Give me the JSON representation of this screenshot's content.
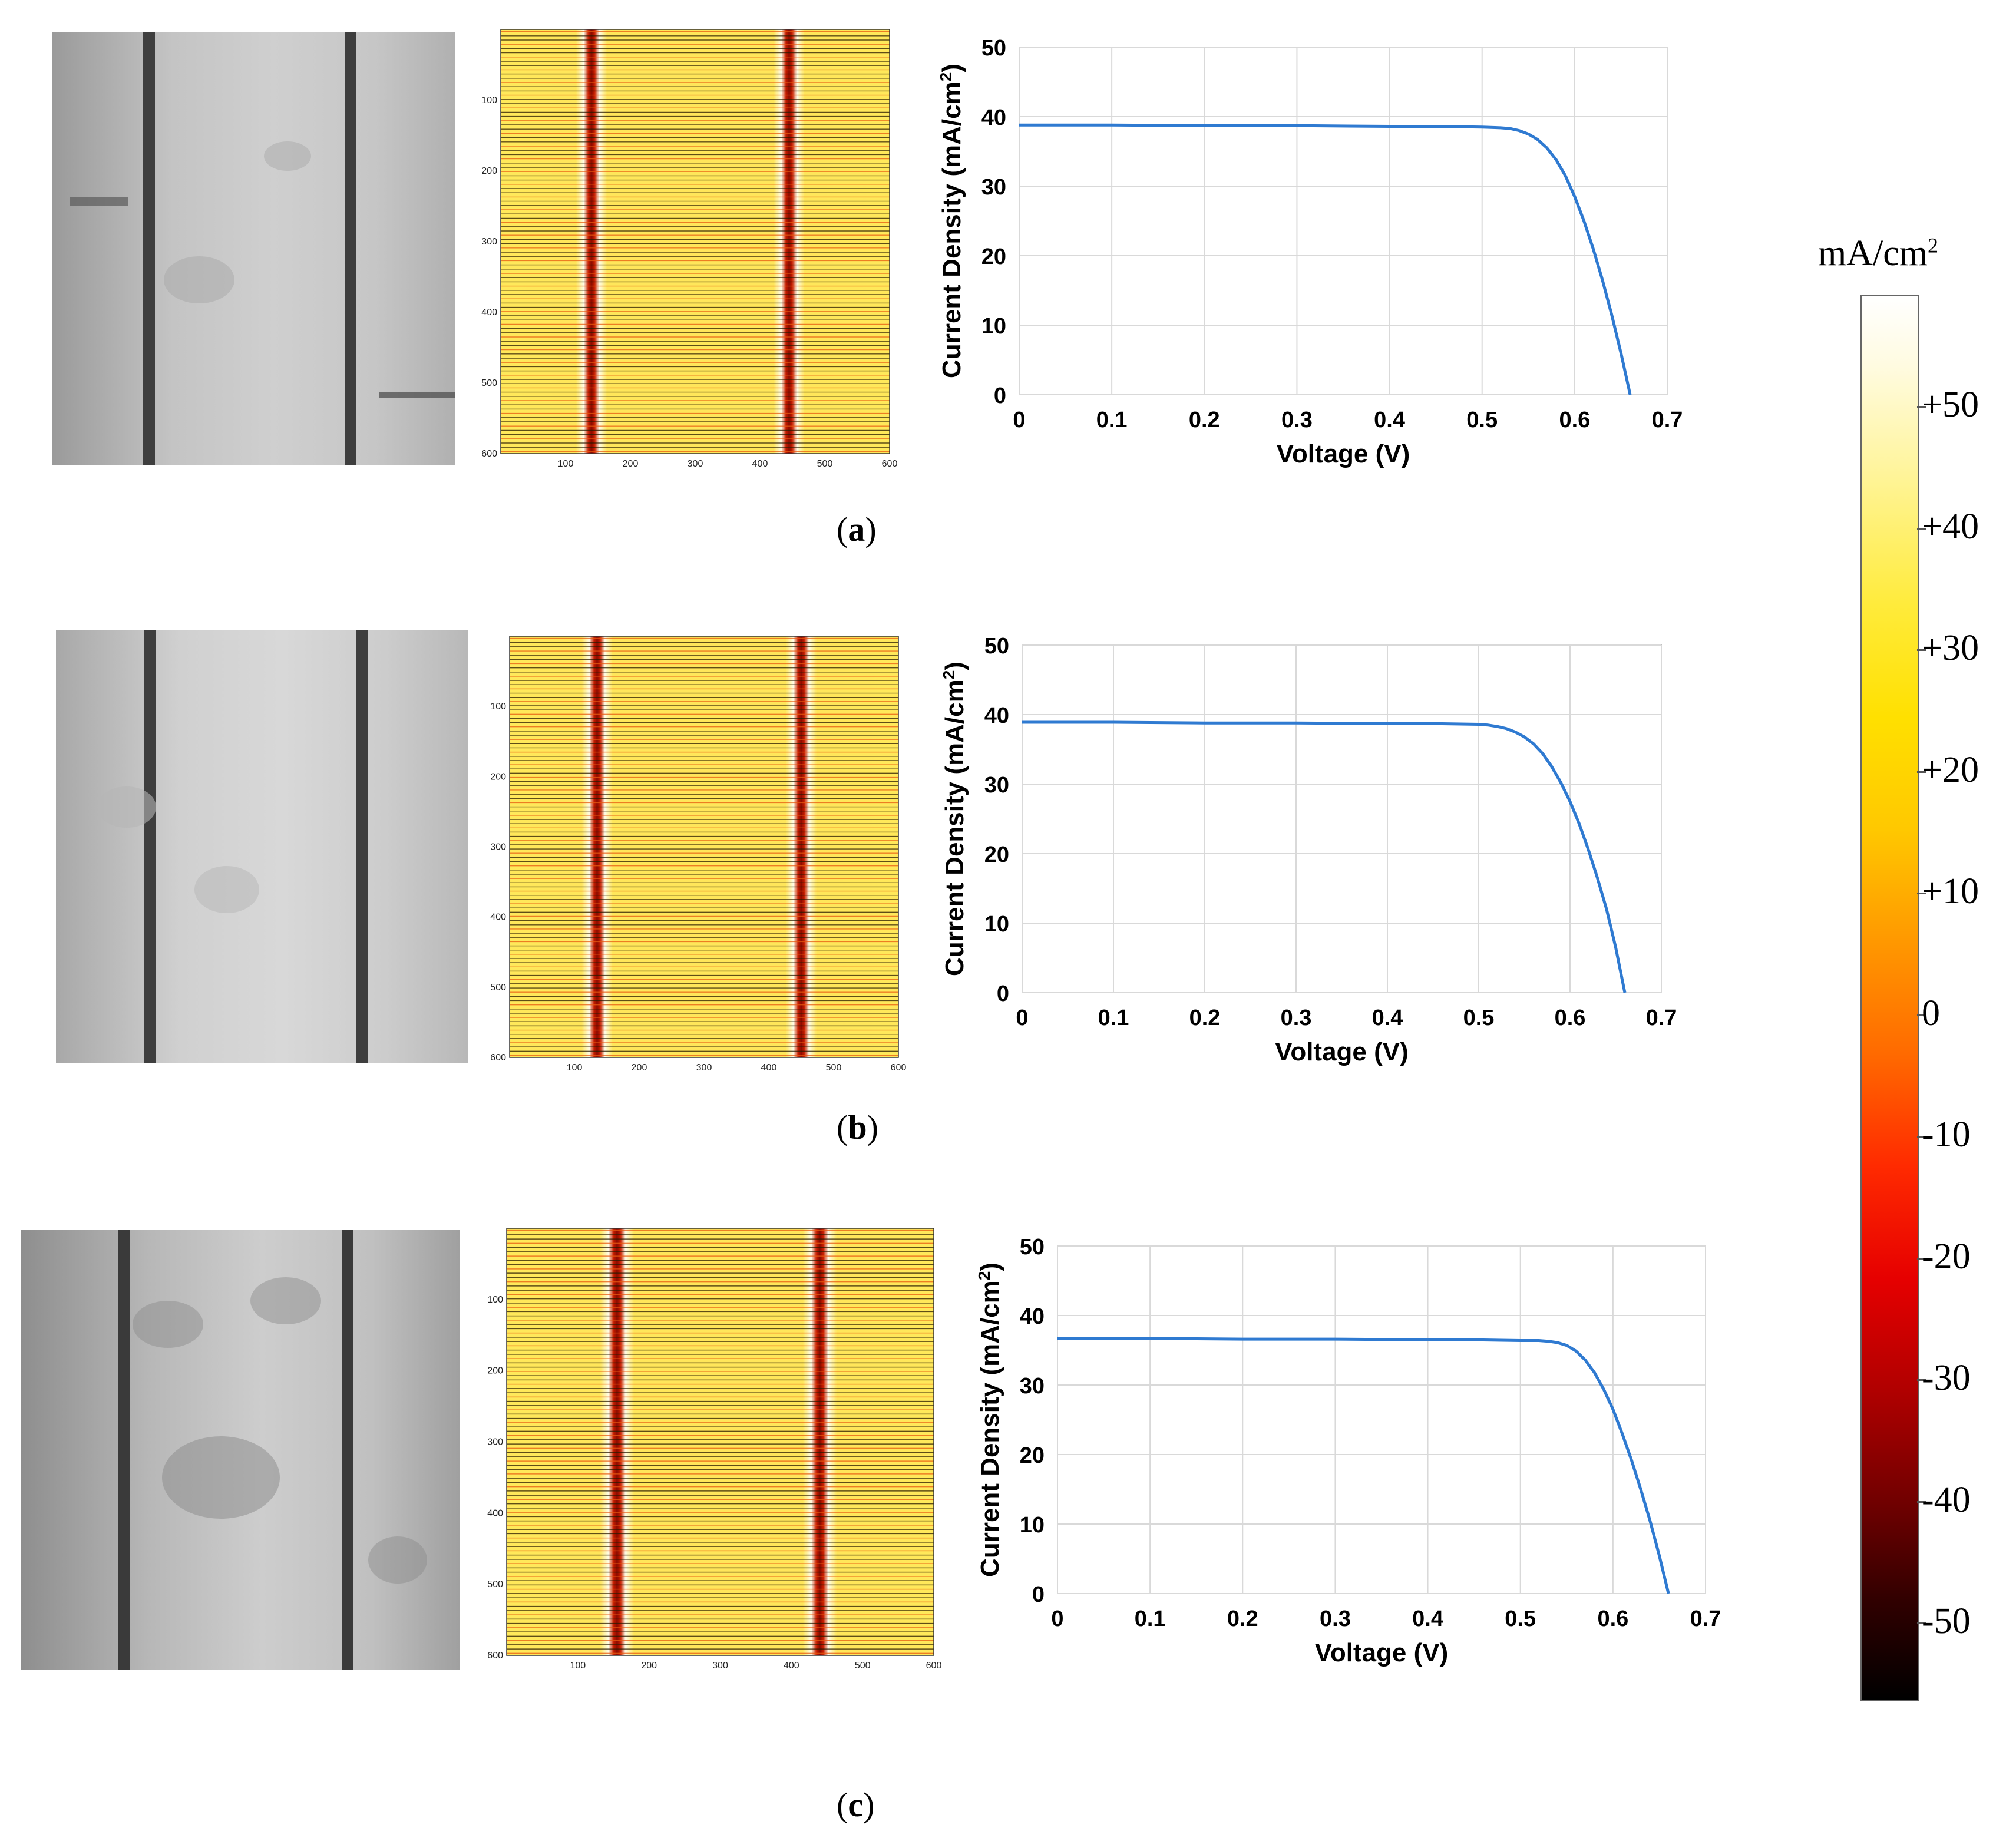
{
  "panels": [
    {
      "label_open": "(",
      "label_letter": "a",
      "label_close": ")"
    },
    {
      "label_open": "(",
      "label_letter": "b",
      "label_close": ")"
    },
    {
      "label_open": "(",
      "label_letter": "c",
      "label_close": ")"
    }
  ],
  "heatmap_ticks": {
    "x": [
      "100",
      "200",
      "300",
      "400",
      "500",
      "600"
    ],
    "y": [
      "100",
      "200",
      "300",
      "400",
      "500",
      "600"
    ]
  },
  "colorbar": {
    "unit_main": "mA/cm",
    "unit_sup": "2",
    "labels": [
      "+50",
      "+40",
      "+30",
      "+20",
      "+10",
      "0",
      "-10",
      "-20",
      "-30",
      "-40",
      "-50"
    ]
  },
  "colors": {
    "curve": "#2f7ad1",
    "grid": "#d9d9d9"
  },
  "chart_data": [
    {
      "type": "line",
      "panel": "a",
      "xlabel": "Voltage (V)",
      "ylabel_main": "Current Density (mA/cm",
      "ylabel_sup": "2",
      "ylabel_close": ")",
      "xlim": [
        0,
        0.7
      ],
      "ylim": [
        0,
        50
      ],
      "xticks": [
        "0",
        "0.1",
        "0.2",
        "0.3",
        "0.4",
        "0.5",
        "0.6",
        "0.7"
      ],
      "yticks": [
        "0",
        "10",
        "20",
        "30",
        "40",
        "50"
      ],
      "x": [
        0,
        0.1,
        0.2,
        0.3,
        0.4,
        0.45,
        0.5,
        0.52,
        0.53,
        0.54,
        0.55,
        0.56,
        0.57,
        0.58,
        0.59,
        0.6,
        0.61,
        0.62,
        0.63,
        0.64,
        0.65,
        0.66
      ],
      "y": [
        38.8,
        38.8,
        38.7,
        38.7,
        38.6,
        38.6,
        38.5,
        38.4,
        38.3,
        38.0,
        37.5,
        36.7,
        35.5,
        33.8,
        31.5,
        28.5,
        25.0,
        21.0,
        16.5,
        11.5,
        6.0,
        0
      ]
    },
    {
      "type": "line",
      "panel": "b",
      "xlabel": "Voltage (V)",
      "ylabel_main": "Current Density (mA/cm",
      "ylabel_sup": "2",
      "ylabel_close": ")",
      "xlim": [
        0,
        0.7
      ],
      "ylim": [
        0,
        50
      ],
      "xticks": [
        "0",
        "0.1",
        "0.2",
        "0.3",
        "0.4",
        "0.5",
        "0.6",
        "0.7"
      ],
      "yticks": [
        "0",
        "10",
        "20",
        "30",
        "40",
        "50"
      ],
      "x": [
        0,
        0.1,
        0.2,
        0.3,
        0.4,
        0.45,
        0.5,
        0.51,
        0.52,
        0.53,
        0.54,
        0.55,
        0.56,
        0.57,
        0.58,
        0.59,
        0.6,
        0.61,
        0.62,
        0.63,
        0.64,
        0.65,
        0.66
      ],
      "y": [
        38.9,
        38.9,
        38.8,
        38.8,
        38.7,
        38.7,
        38.6,
        38.5,
        38.3,
        38.0,
        37.5,
        36.8,
        35.8,
        34.4,
        32.5,
        30.2,
        27.5,
        24.3,
        20.6,
        16.5,
        12.0,
        6.5,
        0
      ]
    },
    {
      "type": "line",
      "panel": "c",
      "xlabel": "Voltage (V)",
      "ylabel_main": "Current Density (mA/cm",
      "ylabel_sup": "2",
      "ylabel_close": ")",
      "xlim": [
        0,
        0.7
      ],
      "ylim": [
        0,
        50
      ],
      "xticks": [
        "0",
        "0.1",
        "0.2",
        "0.3",
        "0.4",
        "0.5",
        "0.6",
        "0.7"
      ],
      "yticks": [
        "0",
        "10",
        "20",
        "30",
        "40",
        "50"
      ],
      "x": [
        0,
        0.1,
        0.2,
        0.3,
        0.4,
        0.45,
        0.5,
        0.52,
        0.53,
        0.54,
        0.55,
        0.56,
        0.57,
        0.58,
        0.59,
        0.6,
        0.61,
        0.62,
        0.63,
        0.64,
        0.65,
        0.66
      ],
      "y": [
        36.7,
        36.7,
        36.6,
        36.6,
        36.5,
        36.5,
        36.4,
        36.4,
        36.3,
        36.1,
        35.7,
        34.9,
        33.6,
        31.8,
        29.4,
        26.5,
        23.0,
        19.2,
        15.0,
        10.5,
        5.5,
        0
      ]
    }
  ]
}
